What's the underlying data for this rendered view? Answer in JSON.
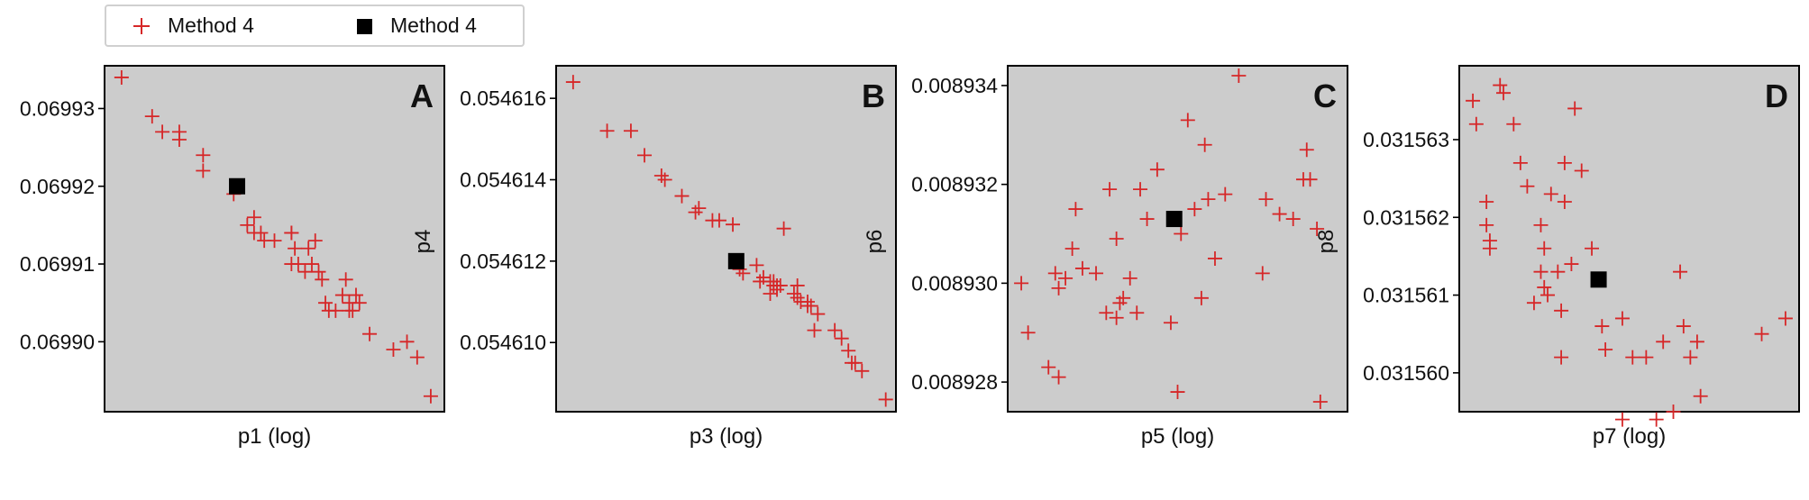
{
  "chart_data": [
    {
      "type": "scatter",
      "panel_label": "A",
      "xlabel": "p1 (log)",
      "ylabel": "",
      "ylim": [
        0.069891,
        0.0699355
      ],
      "yticks": [
        0.0699,
        0.06991,
        0.06992,
        0.06993
      ],
      "ytick_labels": [
        "0.06990",
        "0.06991",
        "0.06992",
        "0.06993"
      ],
      "series": [
        {
          "name": "Method 4",
          "marker": "plus",
          "color": "#d62728",
          "x": [
            0.05,
            0.14,
            0.17,
            0.22,
            0.22,
            0.29,
            0.29,
            0.39,
            0.38,
            0.42,
            0.44,
            0.46,
            0.44,
            0.47,
            0.5,
            0.55,
            0.55,
            0.56,
            0.6,
            0.62,
            0.55,
            0.61,
            0.57,
            0.59,
            0.63,
            0.64,
            0.71,
            0.7,
            0.65,
            0.74,
            0.66,
            0.68,
            0.72,
            0.72,
            0.75,
            0.73,
            0.78,
            0.85,
            0.89,
            0.92,
            0.96
          ],
          "y": [
            0.069934,
            0.069929,
            0.069927,
            0.069927,
            0.069926,
            0.069924,
            0.069922,
            0.06992,
            0.069919,
            0.069915,
            0.069916,
            0.069914,
            0.069914,
            0.069913,
            0.069913,
            0.069914,
            0.069914,
            0.069912,
            0.069912,
            0.069913,
            0.06991,
            0.06991,
            0.06991,
            0.069909,
            0.069909,
            0.069908,
            0.069908,
            0.069906,
            0.069905,
            0.069906,
            0.069904,
            0.069904,
            0.069905,
            0.069904,
            0.069905,
            0.069904,
            0.069901,
            0.069899,
            0.0699,
            0.069898,
            0.069893
          ]
        }
      ],
      "reference": {
        "name": "Method 4",
        "marker": "square",
        "color": "#000000",
        "x": 0.39,
        "y": 0.06992
      }
    },
    {
      "type": "scatter",
      "panel_label": "B",
      "xlabel": "p3 (log)",
      "ylabel": "p4",
      "ylim": [
        0.0546083,
        0.0546168
      ],
      "yticks": [
        0.05461,
        0.054612,
        0.054614,
        0.054616
      ],
      "ytick_labels": [
        "0.054610",
        "0.054612",
        "0.054614",
        "0.054616"
      ],
      "series": [
        {
          "name": "Method 4",
          "marker": "plus",
          "color": "#d62728",
          "x": [
            0.05,
            0.15,
            0.22,
            0.26,
            0.31,
            0.32,
            0.37,
            0.42,
            0.41,
            0.46,
            0.48,
            0.52,
            0.53,
            0.54,
            0.55,
            0.59,
            0.6,
            0.61,
            0.63,
            0.63,
            0.64,
            0.64,
            0.65,
            0.67,
            0.65,
            0.71,
            0.66,
            0.72,
            0.7,
            0.74,
            0.75,
            0.77,
            0.71,
            0.74,
            0.76,
            0.82,
            0.84,
            0.86,
            0.88,
            0.87,
            0.9,
            0.97
          ],
          "y": [
            0.0546164,
            0.0546152,
            0.0546152,
            0.0546146,
            0.0546141,
            0.054614,
            0.0546136,
            0.0546133,
            0.0546132,
            0.054613,
            0.054613,
            0.0546129,
            0.054612,
            0.0546118,
            0.0546117,
            0.0546119,
            0.0546115,
            0.0546116,
            0.0546112,
            0.0546115,
            0.0546115,
            0.0546114,
            0.0546114,
            0.0546128,
            0.0546113,
            0.0546114,
            0.0546114,
            0.054611,
            0.0546112,
            0.0546109,
            0.0546109,
            0.0546107,
            0.0546111,
            0.054611,
            0.0546103,
            0.0546103,
            0.0546101,
            0.0546098,
            0.0546095,
            0.0546095,
            0.0546093,
            0.0546086
          ]
        }
      ],
      "reference": {
        "name": "Method 4",
        "marker": "square",
        "color": "#000000",
        "x": 0.53,
        "y": 0.054612
      }
    },
    {
      "type": "scatter",
      "panel_label": "C",
      "xlabel": "p5 (log)",
      "ylabel": "p6",
      "ylim": [
        0.0089274,
        0.0089344
      ],
      "yticks": [
        0.008928,
        0.00893,
        0.008932,
        0.008934
      ],
      "ytick_labels": [
        "0.008928",
        "0.008930",
        "0.008932",
        "0.008934"
      ],
      "series": [
        {
          "name": "Method 4",
          "marker": "plus",
          "color": "#d62728",
          "x": [
            0.04,
            0.06,
            0.12,
            0.15,
            0.14,
            0.15,
            0.17,
            0.19,
            0.2,
            0.22,
            0.26,
            0.29,
            0.3,
            0.32,
            0.33,
            0.32,
            0.34,
            0.36,
            0.38,
            0.39,
            0.41,
            0.44,
            0.48,
            0.5,
            0.51,
            0.53,
            0.55,
            0.57,
            0.58,
            0.59,
            0.61,
            0.64,
            0.68,
            0.75,
            0.76,
            0.8,
            0.84,
            0.87,
            0.88,
            0.89,
            0.91,
            0.92
          ],
          "y": [
            0.00893,
            0.008929,
            0.0089283,
            0.0089281,
            0.0089302,
            0.0089299,
            0.0089301,
            0.0089307,
            0.0089315,
            0.0089303,
            0.0089302,
            0.0089294,
            0.0089319,
            0.0089293,
            0.0089296,
            0.0089309,
            0.0089297,
            0.0089301,
            0.0089294,
            0.0089319,
            0.0089313,
            0.0089323,
            0.0089292,
            0.0089278,
            0.008931,
            0.0089333,
            0.0089315,
            0.0089297,
            0.0089328,
            0.0089317,
            0.0089305,
            0.0089318,
            0.0089342,
            0.0089302,
            0.0089317,
            0.0089314,
            0.0089313,
            0.0089321,
            0.0089327,
            0.0089321,
            0.0089311,
            0.0089276
          ]
        }
      ],
      "reference": {
        "name": "Method 4",
        "marker": "square",
        "color": "#000000",
        "x": 0.49,
        "y": 0.0089313
      }
    },
    {
      "type": "scatter",
      "panel_label": "D",
      "xlabel": "p7 (log)",
      "ylabel": "p8",
      "ylim": [
        0.0315595,
        0.03156395
      ],
      "yticks": [
        0.03156,
        0.031561,
        0.031562,
        0.031563
      ],
      "ytick_labels": [
        "0.031560",
        "0.031561",
        "0.031562",
        "0.031563"
      ],
      "series": [
        {
          "name": "Method 4",
          "marker": "plus",
          "color": "#d62728",
          "x": [
            0.04,
            0.05,
            0.08,
            0.09,
            0.08,
            0.12,
            0.09,
            0.13,
            0.16,
            0.18,
            0.2,
            0.24,
            0.24,
            0.25,
            0.25,
            0.22,
            0.26,
            0.27,
            0.29,
            0.3,
            0.31,
            0.3,
            0.31,
            0.33,
            0.34,
            0.36,
            0.39,
            0.42,
            0.43,
            0.48,
            0.48,
            0.51,
            0.55,
            0.58,
            0.6,
            0.63,
            0.65,
            0.66,
            0.68,
            0.7,
            0.71,
            0.89,
            0.96
          ],
          "y": [
            0.0315635,
            0.0315632,
            0.0315619,
            0.0315617,
            0.0315622,
            0.0315637,
            0.0315616,
            0.0315636,
            0.0315632,
            0.0315627,
            0.0315624,
            0.0315619,
            0.0315613,
            0.0315611,
            0.0315616,
            0.0315609,
            0.031561,
            0.0315623,
            0.0315613,
            0.0315608,
            0.0315627,
            0.0315602,
            0.0315622,
            0.0315614,
            0.0315634,
            0.0315626,
            0.0315616,
            0.0315606,
            0.0315603,
            0.0315594,
            0.0315607,
            0.0315602,
            0.0315602,
            0.0315594,
            0.0315604,
            0.0315595,
            0.0315613,
            0.0315606,
            0.0315602,
            0.0315604,
            0.0315597,
            0.0315605,
            0.0315607
          ]
        }
      ],
      "reference": {
        "name": "Method 4",
        "marker": "square",
        "color": "#000000",
        "x": 0.41,
        "y": 0.0315612
      }
    }
  ],
  "legend": {
    "placement": "top-left",
    "entries": [
      {
        "label": "Method 4",
        "marker": "plus",
        "color": "#d62728"
      },
      {
        "label": "Method 4",
        "marker": "square",
        "color": "#000000"
      }
    ]
  },
  "panel_background": "#cccccc"
}
